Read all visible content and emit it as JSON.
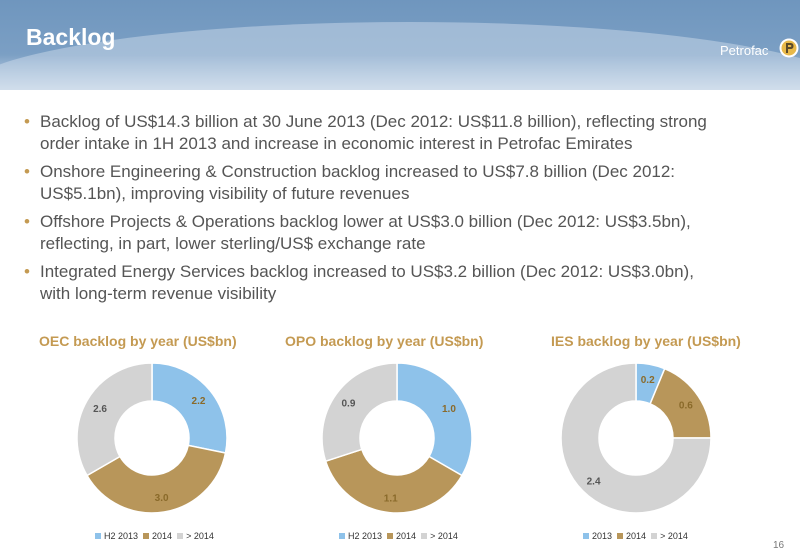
{
  "header": {
    "title": "Backlog",
    "logo_text": "Petrofac",
    "logo_icon": "petrofac-logo-icon"
  },
  "bullets": [
    {
      "lines": [
        "Backlog of US$14.3 billion at 30 June 2013 (Dec 2012: US$11.8 billion), reflecting strong",
        "order intake in 1H 2013 and increase in economic interest in Petrofac Emirates"
      ]
    },
    {
      "lines": [
        "Onshore Engineering & Construction backlog increased to US$7.8 billion (Dec 2012:",
        "US$5.1bn), improving visibility of future revenues"
      ]
    },
    {
      "lines": [
        "Offshore Projects & Operations backlog lower at US$3.0 billion (Dec 2012: US$3.5bn),",
        "reflecting, in part, lower sterling/US$ exchange rate"
      ]
    },
    {
      "lines": [
        "Integrated Energy Services backlog increased to US$3.2 billion (Dec 2012: US$3.0bn),",
        "with long-term revenue visibility"
      ]
    }
  ],
  "colors": {
    "blue": "#8ec2ea",
    "gold": "#b8965a",
    "grey": "#d3d3d3",
    "accent": "#c49a52",
    "text": "#555555"
  },
  "chart_data": [
    {
      "type": "pie",
      "title": "OEC backlog by year (US$bn)",
      "categories": [
        "H2 2013",
        "2014",
        "> 2014"
      ],
      "values": [
        2.2,
        3.0,
        2.6
      ],
      "labels": [
        "2.2",
        "3.0",
        "2.6"
      ],
      "legend": "bottom"
    },
    {
      "type": "pie",
      "title": "OPO backlog by year (US$bn)",
      "categories": [
        "H2 2013",
        "2014",
        "> 2014"
      ],
      "values": [
        1.0,
        1.1,
        0.9
      ],
      "labels": [
        "1.0",
        "1.1",
        "0.9"
      ],
      "legend": "bottom"
    },
    {
      "type": "pie",
      "title": "IES backlog by year (US$bn)",
      "categories": [
        "2013",
        "2014",
        "> 2014"
      ],
      "values": [
        0.2,
        0.6,
        2.4
      ],
      "labels": [
        "0.2",
        "0.6",
        "2.4"
      ],
      "legend": "bottom"
    }
  ],
  "page_number": "16"
}
